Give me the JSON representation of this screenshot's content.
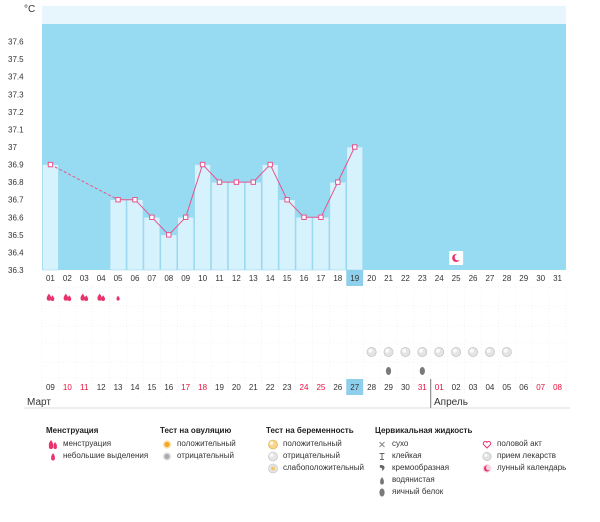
{
  "chart_data": {
    "type": "bar",
    "ylabel": "°C",
    "ylim": [
      36.3,
      37.7
    ],
    "yticks": [
      "37.6",
      "37.5",
      "37.4",
      "37.3",
      "37.2",
      "37.1",
      "37",
      "36.9",
      "36.8",
      "36.7",
      "36.6",
      "36.5",
      "36.4",
      "36.3"
    ],
    "categories": [
      "01",
      "02",
      "03",
      "04",
      "05",
      "06",
      "07",
      "08",
      "09",
      "10",
      "11",
      "12",
      "13",
      "14",
      "15",
      "16",
      "17",
      "18",
      "19",
      "20",
      "21",
      "22",
      "23",
      "24",
      "25",
      "26",
      "27",
      "28",
      "29",
      "30",
      "31"
    ],
    "temperature_series": {
      "values": [
        36.9,
        null,
        null,
        null,
        36.7,
        36.7,
        36.6,
        36.5,
        36.6,
        36.9,
        36.8,
        36.8,
        36.8,
        36.9,
        36.7,
        36.6,
        36.6,
        36.8,
        37.0,
        null,
        null,
        null,
        null,
        null,
        null,
        null,
        null,
        null,
        null,
        null,
        null
      ]
    },
    "highlight_day": "19",
    "dates_bottom": [
      "09",
      "10",
      "11",
      "12",
      "13",
      "14",
      "15",
      "16",
      "17",
      "18",
      "19",
      "20",
      "21",
      "22",
      "23",
      "24",
      "25",
      "26",
      "27",
      "28",
      "29",
      "30",
      "31",
      "01",
      "02",
      "03",
      "04",
      "05",
      "06",
      "07",
      "08"
    ],
    "dates_bottom_red": [
      false,
      true,
      true,
      false,
      false,
      false,
      false,
      false,
      true,
      true,
      false,
      false,
      false,
      false,
      false,
      true,
      true,
      false,
      false,
      false,
      false,
      false,
      true,
      true,
      false,
      false,
      false,
      false,
      false,
      true,
      true
    ],
    "highlight_bottom_index": 18,
    "months": [
      "Март",
      "Апрель"
    ],
    "menstruation": [
      "heavy",
      "heavy",
      "heavy",
      "heavy",
      "light"
    ],
    "pregnancy_negative_days": [
      "20",
      "21",
      "22",
      "23",
      "24",
      "25",
      "26",
      "27",
      "28"
    ],
    "cervical_egg_white_days": [
      "21",
      "23"
    ],
    "lunar_day": "25"
  },
  "legend": {
    "groups": [
      {
        "title": "Менструация",
        "items": [
          {
            "icon": "drop-heavy-icon",
            "label": "менструация"
          },
          {
            "icon": "drop-light-icon",
            "label": "небольшие выделения"
          }
        ]
      },
      {
        "title": "Тест на овуляцию",
        "items": [
          {
            "icon": "sun-positive-icon",
            "label": "положительный"
          },
          {
            "icon": "sun-negative-icon",
            "label": "отрицательный"
          }
        ]
      },
      {
        "title": "Тест на беременность",
        "items": [
          {
            "icon": "pregnancy-positive-icon",
            "label": "положительный"
          },
          {
            "icon": "pregnancy-negative-icon",
            "label": "отрицательный"
          },
          {
            "icon": "pregnancy-weak-icon",
            "label": "слабоположительный"
          }
        ]
      },
      {
        "title": "Цервикальная жидкость",
        "items": [
          {
            "icon": "dry-icon",
            "label": "сухо"
          },
          {
            "icon": "sticky-icon",
            "label": "клейкая"
          },
          {
            "icon": "creamy-icon",
            "label": "кремообразная"
          },
          {
            "icon": "watery-icon",
            "label": "водянистая"
          },
          {
            "icon": "egg-white-icon",
            "label": "яичный белок"
          }
        ]
      },
      {
        "title": "",
        "items": [
          {
            "icon": "heart-icon",
            "label": "половой акт"
          },
          {
            "icon": "pill-icon",
            "label": "прием лекарств"
          },
          {
            "icon": "moon-icon",
            "label": "лунный календарь"
          }
        ]
      }
    ]
  },
  "colors": {
    "plot_background": "#96dbf2",
    "bar_fill": "#d6f2fd",
    "bar_stroke": "#9dd9ef",
    "line": "#e6548c",
    "highlight": "#8ed0ec",
    "red_date": "#e8103c",
    "menstruation": "#e8336c"
  }
}
